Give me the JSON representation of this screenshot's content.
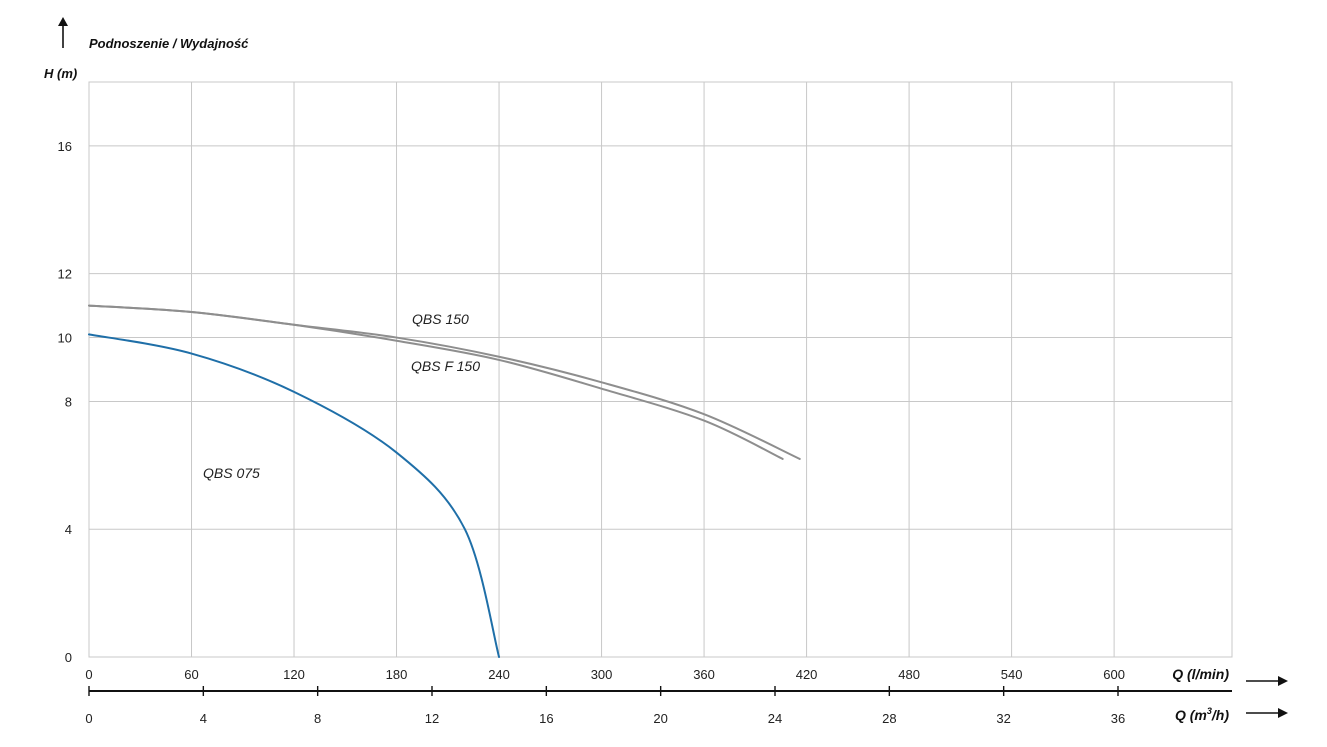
{
  "chart_data": {
    "type": "line",
    "title": "Podnoszenie / Wydajność",
    "ylabel": "H (m)",
    "xlabel": "Q (l/min)",
    "xlabel2_prefix": "Q (m",
    "xlabel2_sup": "3",
    "xlabel2_suffix": "/h)",
    "grid": true,
    "ylim": [
      0,
      18
    ],
    "xlim": [
      0,
      669
    ],
    "y_ticks": [
      0,
      4,
      8,
      10,
      12,
      16
    ],
    "x_ticks": [
      0,
      60,
      120,
      180,
      240,
      300,
      360,
      420,
      480,
      540,
      600
    ],
    "x2_ticks": [
      0,
      4,
      8,
      12,
      16,
      20,
      24,
      28,
      32,
      36
    ],
    "series": [
      {
        "name": "QBS 075",
        "color": "#1f6fa8",
        "points": [
          [
            0,
            10.1
          ],
          [
            60,
            9.5
          ],
          [
            120,
            8.3
          ],
          [
            180,
            6.4
          ],
          [
            220,
            4.0
          ],
          [
            240,
            0
          ]
        ]
      },
      {
        "name": "QBS 150",
        "color": "#8e8e8e",
        "points": [
          [
            0,
            11.0
          ],
          [
            60,
            10.8
          ],
          [
            120,
            10.4
          ],
          [
            180,
            10.0
          ],
          [
            240,
            9.4
          ],
          [
            300,
            8.6
          ],
          [
            360,
            7.6
          ],
          [
            416,
            6.2
          ]
        ]
      },
      {
        "name": "QBS F 150",
        "color": "#8e8e8e",
        "points": [
          [
            0,
            11.0
          ],
          [
            60,
            10.8
          ],
          [
            120,
            10.4
          ],
          [
            180,
            9.9
          ],
          [
            240,
            9.3
          ],
          [
            300,
            8.4
          ],
          [
            360,
            7.4
          ],
          [
            406,
            6.2
          ]
        ]
      }
    ]
  }
}
